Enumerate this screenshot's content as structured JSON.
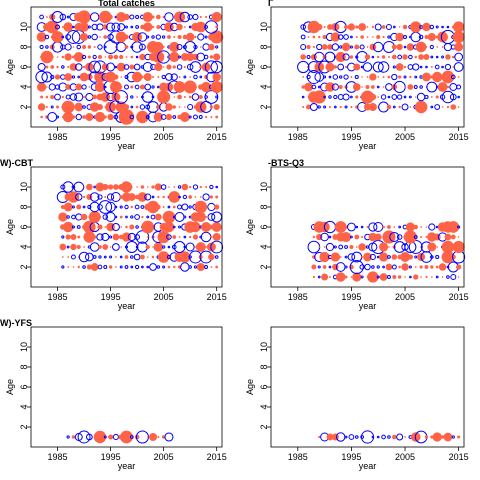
{
  "chart_data": [
    {
      "type": "scatter",
      "title": "Total catches",
      "xlabel": "year",
      "ylabel": "Age",
      "xlim": [
        1980,
        2016
      ],
      "ylim": [
        0,
        12
      ],
      "x_ticks": [
        1985,
        1995,
        2005,
        2015
      ],
      "y_ticks": [
        2,
        4,
        6,
        8,
        10
      ],
      "ages": [
        1,
        2,
        3,
        4,
        5,
        6,
        7,
        8,
        9,
        10,
        11
      ],
      "year_range": [
        1982,
        2015
      ],
      "positive_color": "#ff6347",
      "negative_color": "#0000ff",
      "seed": 11
    },
    {
      "type": "scatter",
      "title": "Γ",
      "xlabel": "year",
      "ylabel": "Age",
      "xlim": [
        1980,
        2016
      ],
      "ylim": [
        0,
        12
      ],
      "x_ticks": [
        1985,
        1995,
        2005,
        2015
      ],
      "y_ticks": [
        2,
        4,
        6,
        8,
        10
      ],
      "ages": [
        2,
        3,
        4,
        5,
        6,
        7,
        8,
        9,
        10
      ],
      "year_range": [
        1986,
        2015
      ],
      "positive_color": "#ff6347",
      "negative_color": "#0000ff",
      "seed": 23
    },
    {
      "type": "scatter",
      "title": "W)-CBT",
      "xlabel": "year",
      "ylabel": "Age",
      "xlim": [
        1980,
        2016
      ],
      "ylim": [
        0,
        12
      ],
      "x_ticks": [
        1985,
        1995,
        2005,
        2015
      ],
      "y_ticks": [
        2,
        4,
        6,
        8,
        10
      ],
      "ages": [
        2,
        3,
        4,
        5,
        6,
        7,
        8,
        9,
        10
      ],
      "year_range": [
        1986,
        2015
      ],
      "positive_color": "#ff6347",
      "negative_color": "#0000ff",
      "seed": 37
    },
    {
      "type": "scatter",
      "title": "-BTS-Q3",
      "xlabel": "year",
      "ylabel": "Age",
      "xlim": [
        1980,
        2016
      ],
      "ylim": [
        0,
        12
      ],
      "x_ticks": [
        1985,
        1995,
        2005,
        2015
      ],
      "y_ticks": [
        2,
        4,
        6,
        8,
        10
      ],
      "ages": [
        1,
        2,
        3,
        4,
        5,
        6
      ],
      "year_range": [
        1988,
        2015
      ],
      "positive_color": "#ff6347",
      "negative_color": "#0000ff",
      "seed": 53
    },
    {
      "type": "scatter",
      "title": "W)-YFS",
      "xlabel": "year",
      "ylabel": "Age",
      "xlim": [
        1980,
        2016
      ],
      "ylim": [
        0,
        12
      ],
      "x_ticks": [
        1985,
        1995,
        2005,
        2015
      ],
      "y_ticks": [
        2,
        4,
        6,
        8,
        10
      ],
      "ages": [
        1
      ],
      "year_range": [
        1987,
        2006
      ],
      "positive_color": "#ff6347",
      "negative_color": "#0000ff",
      "seed": 71
    },
    {
      "type": "scatter",
      "title": "",
      "xlabel": "year",
      "ylabel": "Age",
      "xlim": [
        1980,
        2016
      ],
      "ylim": [
        0,
        12
      ],
      "x_ticks": [
        1985,
        1995,
        2005,
        2015
      ],
      "y_ticks": [
        2,
        4,
        6,
        8,
        10
      ],
      "ages": [
        1
      ],
      "year_range": [
        1989,
        2015
      ],
      "positive_color": "#ff6347",
      "negative_color": "#0000ff",
      "seed": 89
    }
  ]
}
